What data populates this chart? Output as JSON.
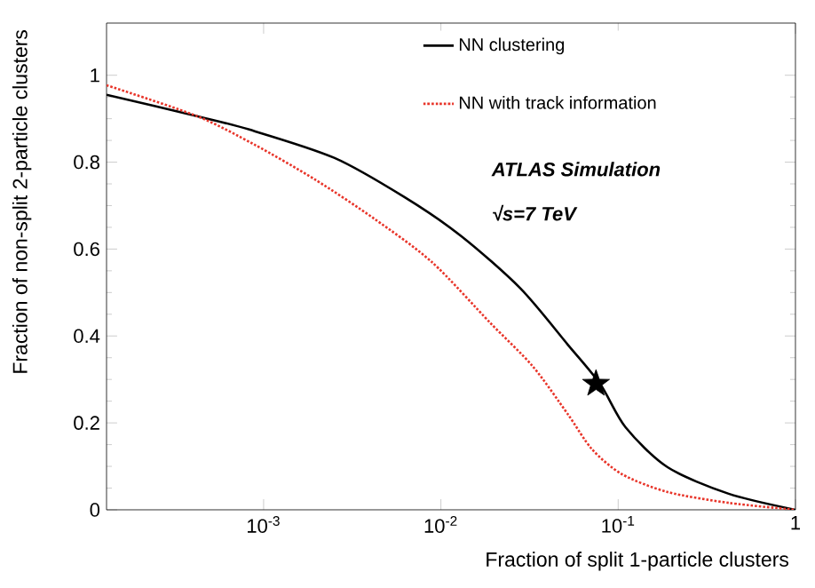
{
  "chart_data": {
    "type": "line",
    "xlabel": "Fraction of split 1-particle clusters",
    "ylabel": "Fraction of non-split 2-particle clusters",
    "log": "x",
    "xlim": [
      0.00013,
      1
    ],
    "ylim": [
      0,
      1.12
    ],
    "xticks": [
      {
        "value": 0.001,
        "label": "10$^{-3}$"
      },
      {
        "value": 0.01,
        "label": "10$^{-2}$"
      },
      {
        "value": 0.1,
        "label": "10$^{-1}$"
      },
      1
    ],
    "yticks": [
      0,
      0.2,
      0.4,
      0.6,
      0.8,
      1
    ],
    "grid": false,
    "legend": "top right",
    "annotations": [
      "ATLAS Simulation",
      "√s=7 TeV"
    ],
    "series": [
      {
        "name": "NN clustering",
        "color": "#000000",
        "line_style": "solid",
        "marker": "none",
        "x": [
          0.00013,
          0.00042,
          0.00083,
          0.0025,
          0.0062,
          0.013,
          0.028,
          0.052,
          0.079,
          0.11,
          0.19,
          0.42,
          1
        ],
        "values": [
          0.955,
          0.906,
          0.875,
          0.81,
          0.72,
          0.63,
          0.51,
          0.38,
          0.29,
          0.19,
          0.098,
          0.037,
          0
        ]
      },
      {
        "name": "NN with track information",
        "color": "#e8352a",
        "line_style": "dotted",
        "marker": "none",
        "x": [
          0.00013,
          0.00042,
          0.00089,
          0.00195,
          0.0042,
          0.0089,
          0.019,
          0.033,
          0.052,
          0.071,
          0.105,
          0.19,
          0.42,
          1
        ],
        "values": [
          0.977,
          0.906,
          0.84,
          0.76,
          0.67,
          0.57,
          0.43,
          0.33,
          0.22,
          0.14,
          0.082,
          0.041,
          0.016,
          0
        ]
      },
      {
        "type": "scatter",
        "color": "#000000",
        "marker": "star",
        "x": [
          0.075
        ],
        "values": [
          0.29
        ]
      }
    ]
  }
}
